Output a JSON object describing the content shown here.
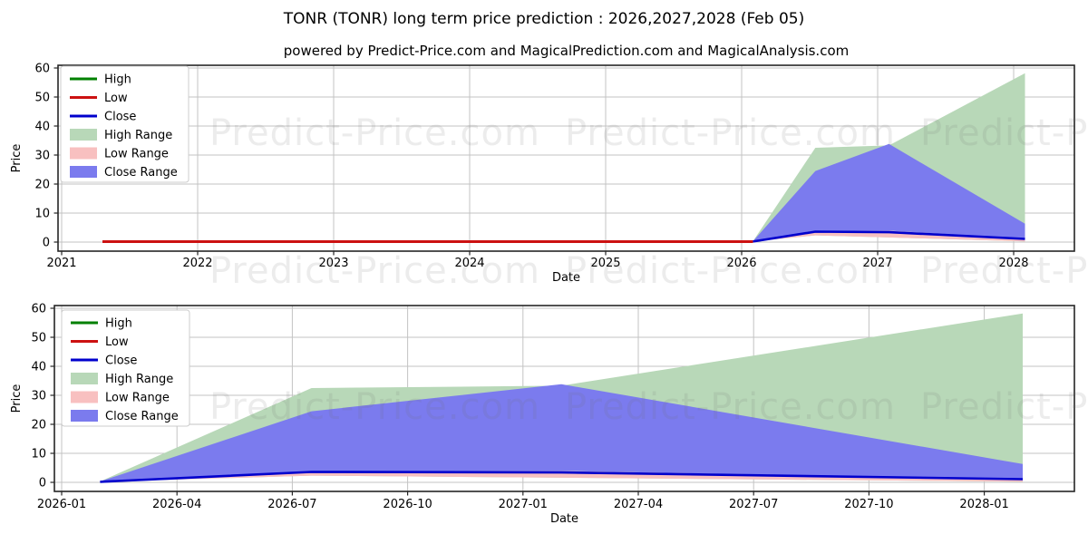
{
  "page": {
    "title": "TONR (TONR) long term price prediction : 2026,2027,2028 (Feb 05)",
    "subtitle": "powered by Predict-Price.com and MagicalPrediction.com and MagicalAnalysis.com"
  },
  "watermark": {
    "text": "Predict-Price.com"
  },
  "colors": {
    "high_line": "#008000",
    "low_line": "#cc1111",
    "close_line": "#0000cd",
    "high_range_fill": "#b8d8b8",
    "low_range_fill": "#f8c0c0",
    "close_range_fill": "#7b7bee",
    "grid": "#c3c3c3",
    "axis": "#262626",
    "tick_text": "#000000",
    "watermark_text": "rgba(110,110,110,0.13)",
    "legend_border": "#cccccc",
    "legend_bg": "#ffffff"
  },
  "legend": {
    "entries": [
      {
        "label": "High",
        "swatch": "line",
        "color": "#008000"
      },
      {
        "label": "Low",
        "swatch": "line",
        "color": "#cc1111"
      },
      {
        "label": "Close",
        "swatch": "line",
        "color": "#0000cd"
      },
      {
        "label": "High Range",
        "swatch": "fill",
        "color": "#b8d8b8"
      },
      {
        "label": "Low Range",
        "swatch": "fill",
        "color": "#f8c0c0"
      },
      {
        "label": "Close Range",
        "swatch": "fill",
        "color": "#7b7bee"
      }
    ]
  },
  "chart_data": [
    {
      "type": "area",
      "name": "yearly-overview",
      "xlabel": "Date",
      "ylabel": "Price",
      "x_tick_labels": [
        "2021",
        "2022",
        "2023",
        "2024",
        "2025",
        "2026",
        "2027",
        "2028"
      ],
      "y_ticks": [
        0,
        10,
        20,
        30,
        40,
        50,
        60
      ],
      "ylim": [
        -3.1,
        60.9
      ],
      "grid": true,
      "legend_position": "upper-left",
      "historical": {
        "series": "Low",
        "x_start_year": 2021.3,
        "x_end_year": 2026.083,
        "value": 0.15
      },
      "prediction": {
        "dates": [
          "2026-02",
          "2026-07",
          "2027-02",
          "2028-02"
        ],
        "months_since_2026_01": [
          1,
          6.5,
          13,
          25
        ],
        "high_range_top": [
          0.3,
          32.5,
          33.3,
          58.2
        ],
        "close_range_top": [
          0.3,
          24.5,
          33.8,
          6.3
        ],
        "close": [
          0.2,
          3.6,
          3.4,
          1.1
        ],
        "low_range_top": [
          0.2,
          3.9,
          3.9,
          1.2
        ],
        "low_range_bottom": [
          0.2,
          2.3,
          1.6,
          0.25
        ]
      }
    },
    {
      "type": "area",
      "name": "prediction-detail",
      "xlabel": "Date",
      "ylabel": "Price",
      "x_tick_labels": [
        "2026-01",
        "2026-04",
        "2026-07",
        "2026-10",
        "2027-01",
        "2027-04",
        "2027-07",
        "2027-10",
        "2028-01"
      ],
      "y_ticks": [
        0,
        10,
        20,
        30,
        40,
        50,
        60
      ],
      "ylim": [
        -3.1,
        60.9
      ],
      "grid": true,
      "legend_position": "upper-left",
      "prediction": {
        "dates": [
          "2026-02",
          "2026-07",
          "2027-02",
          "2028-02"
        ],
        "months_since_2026_01": [
          1,
          6.5,
          13,
          25
        ],
        "high_range_top": [
          0.3,
          32.5,
          33.3,
          58.2
        ],
        "close_range_top": [
          0.3,
          24.5,
          33.8,
          6.3
        ],
        "close": [
          0.2,
          3.6,
          3.4,
          1.1
        ],
        "low_range_top": [
          0.2,
          3.9,
          3.9,
          1.2
        ],
        "low_range_bottom": [
          0.2,
          2.3,
          1.6,
          0.25
        ]
      }
    }
  ]
}
